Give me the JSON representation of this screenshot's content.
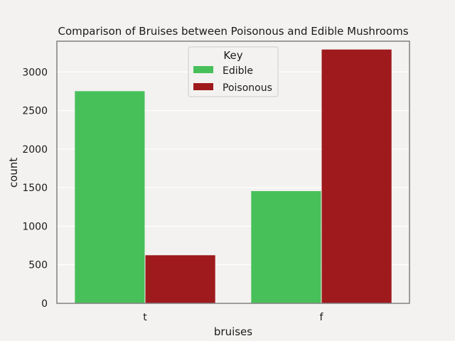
{
  "chart_data": {
    "type": "bar",
    "title": "Comparison of Bruises between Poisonous and Edible Mushrooms",
    "xlabel": "bruises",
    "ylabel": "count",
    "categories": [
      "t",
      "f"
    ],
    "series": [
      {
        "name": "Edible",
        "values": [
          2752,
          1456
        ],
        "color": "#48c05a"
      },
      {
        "name": "Poisonous",
        "values": [
          624,
          3292
        ],
        "color": "#9e1a1d"
      }
    ],
    "ylim": [
      0,
      3400
    ],
    "yticks": [
      0,
      500,
      1000,
      1500,
      2000,
      2500,
      3000
    ],
    "grid": true,
    "legend": {
      "title": "Key",
      "placement": "upper center"
    }
  }
}
